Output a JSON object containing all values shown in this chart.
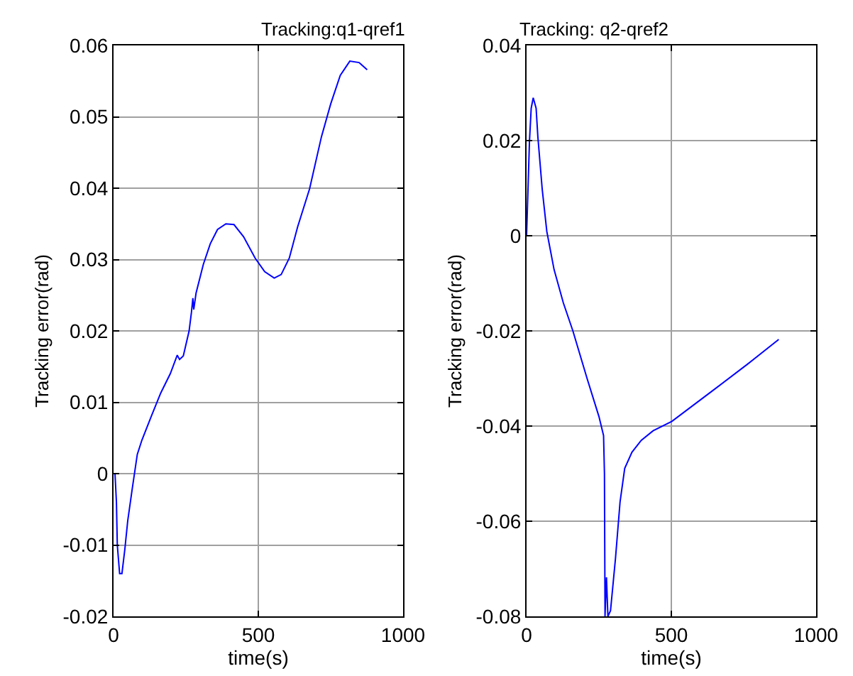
{
  "chart_data": [
    {
      "type": "line",
      "title": "Tracking:q1-qref1",
      "xlabel": "time(s)",
      "ylabel": "Tracking error(rad)",
      "color": "#0000ff",
      "grid": true,
      "x": [
        0,
        5,
        10,
        13,
        21,
        29,
        39,
        49,
        65,
        82,
        98,
        130,
        163,
        196,
        220,
        228,
        241,
        261,
        269,
        274,
        277,
        285,
        310,
        334,
        359,
        388,
        416,
        449,
        489,
        522,
        555,
        579,
        607,
        636,
        677,
        718,
        750,
        783,
        816,
        848,
        876
      ],
      "values": [
        0.0,
        0.0,
        -0.004,
        -0.01,
        -0.014,
        -0.014,
        -0.0106,
        -0.0066,
        -0.002,
        0.0027,
        0.0047,
        0.008,
        0.0113,
        0.014,
        0.0166,
        0.016,
        0.0165,
        0.02,
        0.0226,
        0.0246,
        0.023,
        0.0253,
        0.0293,
        0.0322,
        0.0342,
        0.035,
        0.0349,
        0.0332,
        0.0302,
        0.0283,
        0.0274,
        0.0279,
        0.0302,
        0.0346,
        0.0399,
        0.0472,
        0.0518,
        0.0558,
        0.0578,
        0.0576,
        0.0566
      ],
      "xlim": [
        0,
        1000
      ],
      "xticks": [
        0,
        500,
        1000
      ],
      "ylim": [
        -0.02,
        0.06
      ],
      "yticks": [
        -0.02,
        -0.01,
        0,
        0.01,
        0.02,
        0.03,
        0.04,
        0.05,
        0.06
      ]
    },
    {
      "type": "line",
      "title": "Tracking: q2-qref2",
      "xlabel": "time(s)",
      "ylabel": "Tracking error(rad)",
      "color": "#0000ff",
      "grid": true,
      "x": [
        0,
        5,
        10,
        16,
        23,
        33,
        39,
        54,
        70,
        95,
        127,
        160,
        209,
        250,
        266,
        269,
        271,
        276,
        281,
        290,
        307,
        323,
        339,
        364,
        396,
        437,
        502,
        633,
        763,
        871
      ],
      "values": [
        0.0,
        0.0098,
        0.0198,
        0.0268,
        0.029,
        0.0268,
        0.0208,
        0.0098,
        0.0009,
        -0.0071,
        -0.0141,
        -0.02,
        -0.03,
        -0.038,
        -0.042,
        -0.05,
        -0.08,
        -0.0718,
        -0.08,
        -0.0788,
        -0.0679,
        -0.0559,
        -0.0489,
        -0.0455,
        -0.043,
        -0.041,
        -0.039,
        -0.033,
        -0.027,
        -0.0218
      ],
      "xlim": [
        0,
        1000
      ],
      "xticks": [
        0,
        500,
        1000
      ],
      "ylim": [
        -0.08,
        0.04
      ],
      "yticks": [
        -0.08,
        -0.06,
        -0.04,
        -0.02,
        0,
        0.02,
        0.04
      ]
    }
  ]
}
